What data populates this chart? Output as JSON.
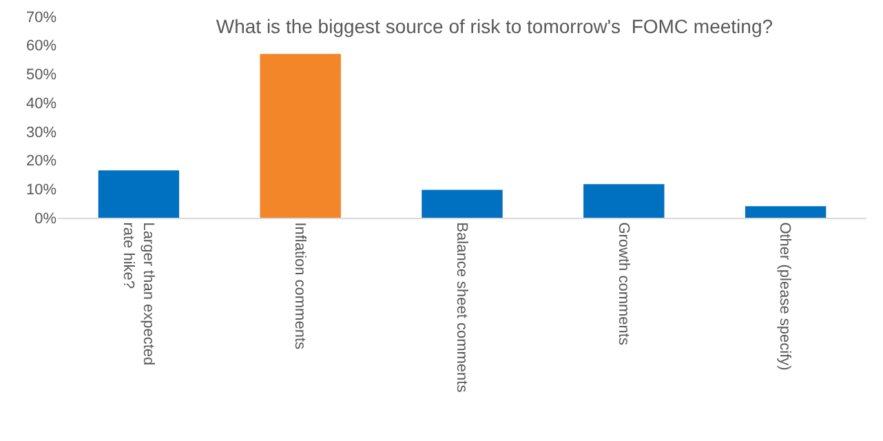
{
  "chart_data": {
    "type": "bar",
    "title": "What is the biggest source of risk to tomorrow's  FOMC meeting?",
    "categories": [
      "Larger than expected rate hike?",
      "Inflation comments",
      "Balance sheet comments",
      "Growth comments",
      "Other (please specify)"
    ],
    "values": [
      16.5,
      57,
      9.7,
      11.7,
      4
    ],
    "colors": [
      "#0070c0",
      "#f4862a",
      "#0070c0",
      "#0070c0",
      "#0070c0"
    ],
    "ylim": [
      0,
      70
    ],
    "yticks": [
      {
        "value": 0,
        "label": "0%"
      },
      {
        "value": 10,
        "label": "10%"
      },
      {
        "value": 20,
        "label": "20%"
      },
      {
        "value": 30,
        "label": "30%"
      },
      {
        "value": 40,
        "label": "40%"
      },
      {
        "value": 50,
        "label": "50%"
      },
      {
        "value": 60,
        "label": "60%"
      },
      {
        "value": 70,
        "label": "70%"
      }
    ],
    "grid": false
  }
}
